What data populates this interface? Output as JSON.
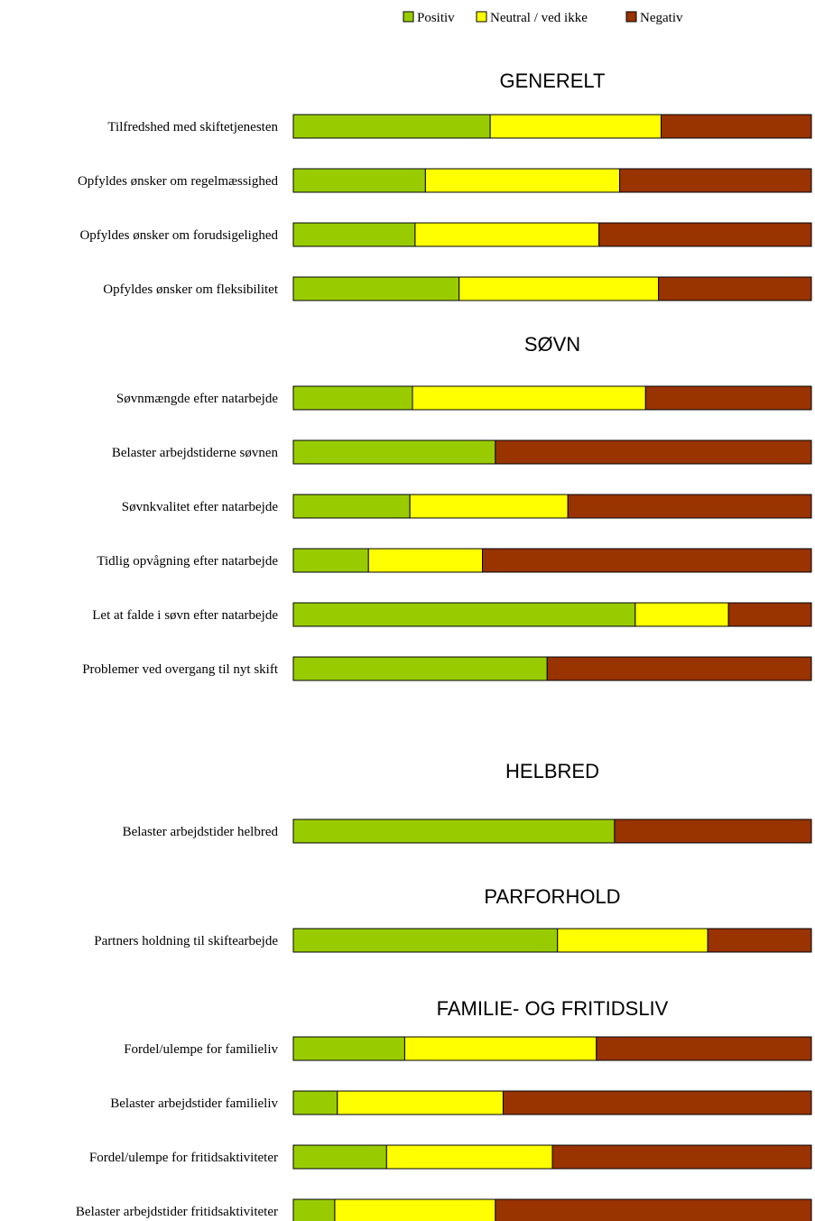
{
  "chart_data": {
    "type": "bar",
    "stacked": "percent",
    "orientation": "horizontal",
    "colors": {
      "Positiv": "#99cc00",
      "Neutral / ved ikke": "#ffff00",
      "Negativ": "#993300"
    },
    "legend": {
      "position": "top",
      "items": [
        "Positiv",
        "Neutral / ved ikke",
        "Negativ"
      ]
    },
    "series_names": [
      "Positiv",
      "Neutral / ved ikke",
      "Negativ"
    ],
    "sections": [
      {
        "title": "GENERELT",
        "rows": [
          {
            "label": "Tilfredshed med skiftetjenesten",
            "values": [
              38,
              33,
              29
            ]
          },
          {
            "label": "Opfyldes ønsker om regelmæssighed",
            "values": [
              25.5,
              37.5,
              37
            ]
          },
          {
            "label": "Opfyldes ønsker om forudsigelighed",
            "values": [
              23.5,
              35.5,
              41
            ]
          },
          {
            "label": "Opfyldes ønsker om fleksibilitet",
            "values": [
              32,
              38.5,
              29.5
            ]
          }
        ]
      },
      {
        "title": "SØVN",
        "rows": [
          {
            "label": "Søvnmængde efter natarbejde",
            "values": [
              23,
              45,
              32
            ]
          },
          {
            "label": "Belaster arbejdstiderne søvnen",
            "values": [
              39,
              0,
              61
            ]
          },
          {
            "label": "Søvnkvalitet efter natarbejde",
            "values": [
              22.5,
              30.5,
              47
            ]
          },
          {
            "label": "Tidlig opvågning efter natarbejde",
            "values": [
              14.5,
              22,
              63.5
            ]
          },
          {
            "label": "Let at falde i søvn efter natarbejde",
            "values": [
              66,
              18,
              16
            ]
          },
          {
            "label": "Problemer ved overgang til nyt skift",
            "values": [
              49,
              0,
              51
            ]
          }
        ]
      },
      {
        "title": "HELBRED",
        "rows": [
          {
            "label": "Belaster arbejdstider helbred",
            "values": [
              62,
              0,
              38
            ]
          }
        ]
      },
      {
        "title": "PARFORHOLD",
        "rows": [
          {
            "label": "Partners holdning til skiftearbejde",
            "values": [
              51,
              29,
              20
            ]
          }
        ]
      },
      {
        "title": "FAMILIE- OG FRITIDSLIV",
        "rows": [
          {
            "label": "Fordel/ulempe for familieliv",
            "values": [
              21.5,
              37,
              41.5
            ]
          },
          {
            "label": "Belaster arbejdstider familieliv",
            "values": [
              8.5,
              32,
              59.5
            ]
          },
          {
            "label": "Fordel/ulempe for fritidsaktiviteter",
            "values": [
              18,
              32,
              50
            ]
          },
          {
            "label": "Belaster arbejdstider fritidsaktiviteter",
            "values": [
              8,
              31,
              61
            ]
          }
        ]
      }
    ]
  }
}
